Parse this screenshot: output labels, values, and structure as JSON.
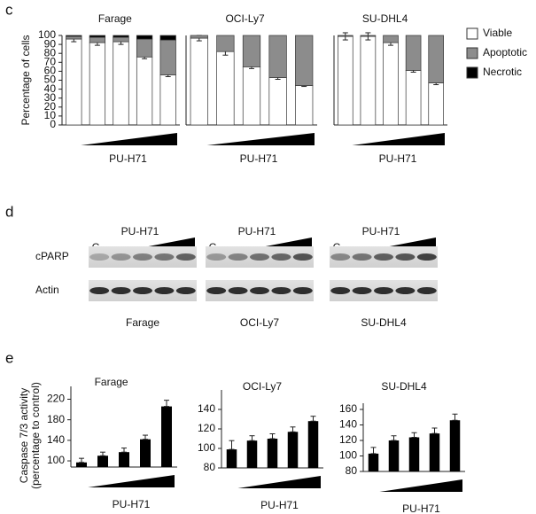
{
  "panel_labels": [
    "c",
    "d",
    "e"
  ],
  "chart_data": [
    {
      "type": "stacked_bar",
      "title": "Farage",
      "xlabel": "PU-H71",
      "ylabel": "Percentage of cells",
      "ylim": [
        0,
        100
      ],
      "yticks": [
        0,
        10,
        20,
        30,
        40,
        50,
        60,
        70,
        80,
        90,
        100
      ],
      "series": [
        {
          "name": "Viable",
          "color": "#ffffff",
          "values": [
            96,
            92,
            93,
            76,
            56
          ],
          "errors": [
            3,
            3,
            3,
            2,
            2
          ]
        },
        {
          "name": "Apoptotic",
          "color": "#8c8c8c",
          "values": [
            3,
            6,
            5,
            20,
            39
          ]
        },
        {
          "name": "Necrotic",
          "color": "#000000",
          "values": [
            1,
            2,
            2,
            4,
            5
          ]
        }
      ]
    },
    {
      "type": "stacked_bar",
      "title": "OCI-Ly7",
      "xlabel": "PU-H71",
      "ylim": [
        0,
        100
      ],
      "series": [
        {
          "color": "#ffffff",
          "values": [
            97,
            82,
            65,
            53,
            44
          ],
          "errors": [
            3,
            4,
            2,
            2,
            1
          ]
        },
        {
          "color": "#8c8c8c",
          "values": [
            3,
            18,
            35,
            47,
            56
          ]
        }
      ]
    },
    {
      "type": "stacked_bar",
      "title": "SU-DHL4",
      "xlabel": "PU-H71",
      "ylim": [
        0,
        100
      ],
      "series": [
        {
          "color": "#ffffff",
          "values": [
            99,
            99,
            92,
            61,
            47
          ],
          "errors": [
            4,
            4,
            3,
            2,
            2
          ]
        },
        {
          "color": "#8c8c8c",
          "values": [
            1,
            1,
            8,
            39,
            53
          ]
        }
      ]
    },
    {
      "type": "bar",
      "title": "Farage",
      "xlabel": "PU-H71",
      "ylabel": [
        "Caspase 7/3 activity",
        "(percentage to control)"
      ],
      "ylim": [
        88,
        245
      ],
      "yticks": [
        100,
        140,
        180,
        220
      ],
      "color": "#000000",
      "values": [
        97,
        110,
        117,
        142,
        206
      ],
      "errors": [
        8,
        7,
        8,
        8,
        12
      ]
    },
    {
      "type": "bar",
      "title": "OCI-Ly7",
      "xlabel": "PU-H71",
      "ylim": [
        80,
        160
      ],
      "yticks": [
        80,
        100,
        120,
        140
      ],
      "color": "#000000",
      "values": [
        99,
        108,
        110,
        117,
        128
      ],
      "errors": [
        9,
        5,
        5,
        5,
        5
      ]
    },
    {
      "type": "bar",
      "title": "SU-DHL4",
      "xlabel": "PU-H71",
      "ylim": [
        80,
        168
      ],
      "yticks": [
        80,
        100,
        120,
        140,
        160
      ],
      "color": "#000000",
      "values": [
        103,
        120,
        124,
        129,
        146
      ],
      "errors": [
        8,
        6,
        6,
        7,
        8
      ]
    }
  ],
  "blot": {
    "rows": [
      "cPARP",
      "Actin"
    ],
    "panels": [
      {
        "treatment": "PU-H71",
        "control": "C",
        "name": "Farage"
      },
      {
        "treatment": "PU-H71",
        "control": "C",
        "name": "OCI-Ly7"
      },
      {
        "treatment": "PU-H71",
        "control": "C",
        "name": "SU-DHL4"
      }
    ]
  }
}
